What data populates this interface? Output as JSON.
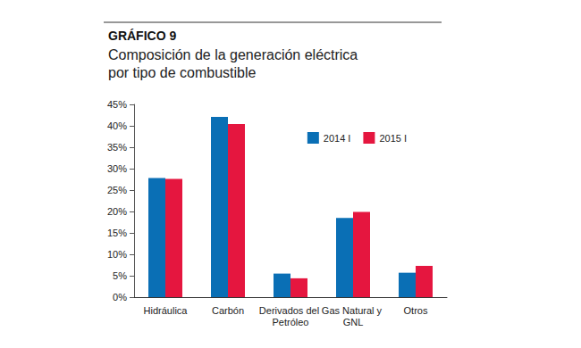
{
  "chart_data": {
    "type": "bar",
    "title": "GRÁFICO 9",
    "subtitle": "Composición de la generación eléctrica por tipo de combustible",
    "categories": [
      "Hidráulica",
      "Carbón",
      "Derivados del Petróleo",
      "Gas Natural y GNL",
      "Otros"
    ],
    "series": [
      {
        "name": "2014 I",
        "color": "#0a6fb5",
        "values": [
          27.8,
          42.1,
          5.5,
          18.5,
          5.7
        ]
      },
      {
        "name": "2015 I",
        "color": "#e5163f",
        "values": [
          27.6,
          40.4,
          4.4,
          19.9,
          7.3
        ]
      }
    ],
    "ylim": [
      0,
      45
    ],
    "yticks": [
      {
        "value": 0,
        "label": "0%"
      },
      {
        "value": 5,
        "label": "5%"
      },
      {
        "value": 10,
        "label": "10%"
      },
      {
        "value": 15,
        "label": "15%"
      },
      {
        "value": 20,
        "label": "20%"
      },
      {
        "value": 25,
        "label": "25%"
      },
      {
        "value": 30,
        "label": "30%"
      },
      {
        "value": 35,
        "label": "35%"
      },
      {
        "value": 40,
        "label": "40%"
      },
      {
        "value": 45,
        "label": "45%"
      }
    ],
    "grid": false,
    "legend": "upper right"
  }
}
